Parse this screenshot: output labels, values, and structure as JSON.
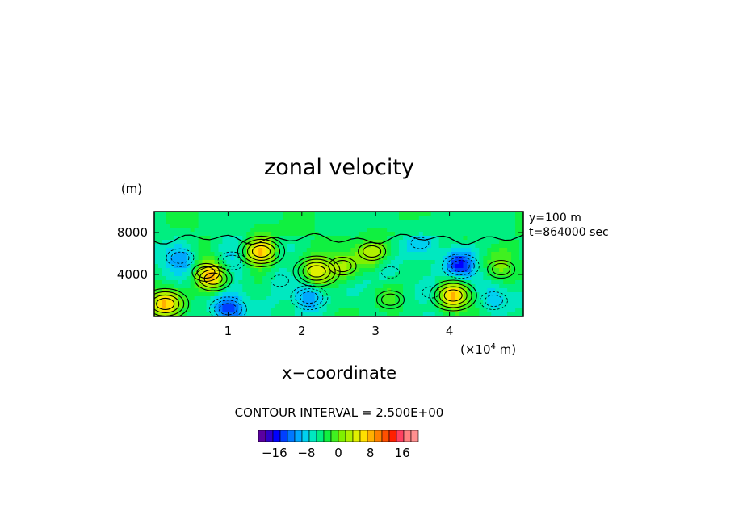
{
  "chart_data": {
    "type": "heatmap",
    "title": "zonal velocity",
    "xlabel": "x−coordinate",
    "ylabel": "(m)",
    "x_scale_label": "(×10",
    "x_scale_exp": "4",
    "x_scale_unit": " m)",
    "xlim": [
      0,
      5
    ],
    "ylim": [
      0,
      10000
    ],
    "x_ticks": [
      1,
      2,
      3,
      4
    ],
    "x_tick_labels": [
      "1",
      "2",
      "3",
      "4"
    ],
    "y_ticks": [
      4000,
      8000
    ],
    "y_tick_labels": [
      "4000",
      "8000"
    ],
    "annotations": [
      "y=100 m",
      "t=864000 sec"
    ],
    "contour_interval_text": "CONTOUR INTERVAL = 2.500E+00",
    "colorbar": {
      "min": -20,
      "max": 20,
      "step": 2.5,
      "tick_values": [
        -16,
        -8,
        0,
        8,
        16
      ],
      "tick_labels": [
        "−16",
        "−8",
        "0",
        "8",
        "16"
      ]
    },
    "features": [
      {
        "x": 0.15,
        "y": 1200,
        "value": 15
      },
      {
        "x": 0.7,
        "y": 4200,
        "value": 9
      },
      {
        "x": 0.8,
        "y": 3600,
        "value": 11
      },
      {
        "x": 1.45,
        "y": 6200,
        "value": 18
      },
      {
        "x": 2.2,
        "y": 4300,
        "value": 16
      },
      {
        "x": 2.55,
        "y": 4800,
        "value": 9
      },
      {
        "x": 2.95,
        "y": 6200,
        "value": 9
      },
      {
        "x": 4.05,
        "y": 2000,
        "value": 17
      },
      {
        "x": 4.7,
        "y": 4500,
        "value": 8
      },
      {
        "x": 3.2,
        "y": 1600,
        "value": 7
      },
      {
        "x": 0.35,
        "y": 5600,
        "value": -9
      },
      {
        "x": 1.0,
        "y": 700,
        "value": -13
      },
      {
        "x": 1.05,
        "y": 5300,
        "value": -7
      },
      {
        "x": 2.1,
        "y": 1800,
        "value": -11
      },
      {
        "x": 3.2,
        "y": 4200,
        "value": -4
      },
      {
        "x": 3.75,
        "y": 2300,
        "value": -5
      },
      {
        "x": 4.15,
        "y": 4800,
        "value": -13
      },
      {
        "x": 4.6,
        "y": 1500,
        "value": -6
      },
      {
        "x": 1.7,
        "y": 3400,
        "value": -5
      },
      {
        "x": 3.6,
        "y": 7000,
        "value": -4
      }
    ]
  },
  "colors": {
    "palette": [
      "#5a00a0",
      "#3000c8",
      "#0000ff",
      "#0040ff",
      "#0078ff",
      "#00a8ff",
      "#00d0f0",
      "#00e8c0",
      "#00ee80",
      "#10f040",
      "#40f020",
      "#80f000",
      "#b0f000",
      "#e0f000",
      "#ffe000",
      "#ffb000",
      "#ff8000",
      "#ff5000",
      "#ff2000",
      "#ff4060",
      "#ff8080",
      "#ff9090"
    ]
  }
}
